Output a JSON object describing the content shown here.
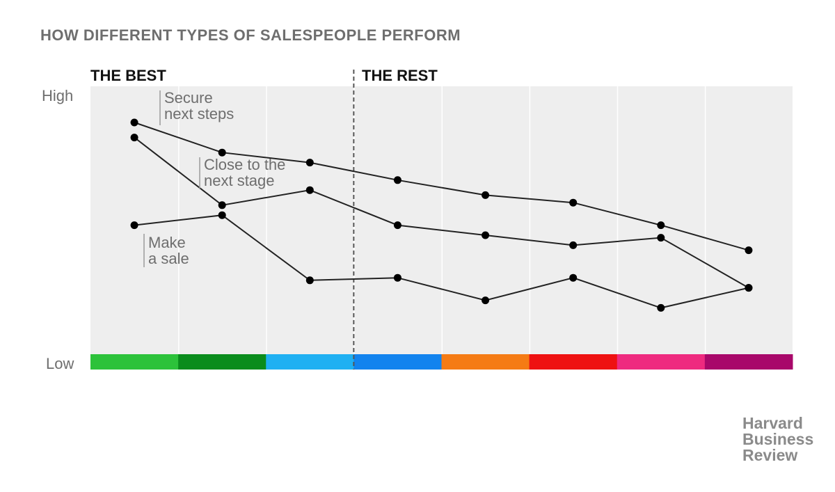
{
  "chart_data": {
    "type": "line",
    "title": "HOW DIFFERENT TYPES OF SALESPEOPLE PERFORM",
    "group_labels": [
      "THE BEST",
      "THE REST"
    ],
    "ylabel_high": "High",
    "ylabel_low": "Low",
    "ylim": [
      0,
      100
    ],
    "x": [
      1,
      2,
      3,
      4,
      5,
      6,
      7,
      8
    ],
    "category_colors": [
      "#2cc23a",
      "#0a8c1c",
      "#1fb0f2",
      "#1283ee",
      "#f57b14",
      "#ee1111",
      "#ee2a7f",
      "#a8086a"
    ],
    "divider_after_category": 3,
    "grid": true,
    "series": [
      {
        "name": "Secure next steps",
        "label_lines": [
          "Secure",
          "next steps"
        ],
        "values": [
          90,
          78,
          74,
          67,
          61,
          58,
          49,
          39
        ]
      },
      {
        "name": "Close to the next stage",
        "label_lines": [
          "Close to the",
          "next stage"
        ],
        "values": [
          84,
          57,
          63,
          49,
          45,
          41,
          44,
          24
        ]
      },
      {
        "name": "Make a sale",
        "label_lines": [
          "Make",
          "a sale"
        ],
        "values": [
          49,
          53,
          27,
          28,
          19,
          28,
          16,
          24
        ]
      }
    ],
    "line_color": "#222222",
    "text_color": "#6e6e6e",
    "background_color": "#eeeeee"
  },
  "brand": {
    "lines": [
      "Harvard",
      "Business",
      "Review"
    ],
    "color": "#8a8a8a"
  }
}
